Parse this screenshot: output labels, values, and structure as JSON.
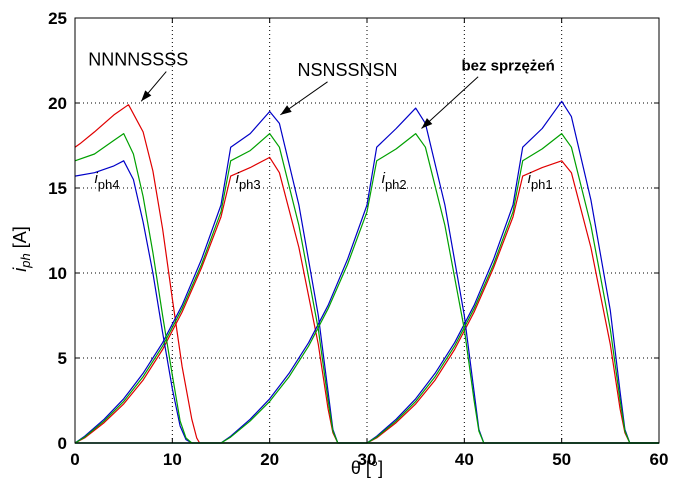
{
  "chart_data": {
    "type": "line",
    "title": "",
    "xlabel": "θ [°]",
    "ylabel": "i_ph [A]",
    "xlim": [
      0,
      60
    ],
    "ylim": [
      0,
      25
    ],
    "xticks": [
      0,
      10,
      20,
      30,
      40,
      50,
      60
    ],
    "yticks": [
      0,
      5,
      10,
      15,
      20,
      25
    ],
    "grid": true,
    "series": [
      {
        "name": "NNNNSSSS",
        "color": "#e00000",
        "phases": [
          {
            "x": [
              0,
              0.5,
              2,
              4,
              5.5,
              7,
              8,
              9,
              10,
              11,
              12,
              12.5,
              12.8,
              15,
              20,
              25,
              26.2,
              26.8,
              30,
              35,
              40,
              41.2,
              41.8,
              45,
              50,
              55,
              56.2,
              56.8,
              60
            ],
            "y": [
              17.4,
              17.6,
              18.3,
              19.3,
              19.9,
              18.3,
              16,
              12.6,
              8.5,
              4.5,
              1.4,
              0.3,
              0,
              0,
              0,
              0,
              0,
              0,
              0,
              0,
              0,
              0,
              0,
              0,
              0,
              0,
              0,
              0,
              0
            ]
          },
          {
            "x": [
              0,
              1,
              3,
              5,
              7,
              9,
              11,
              13,
              15,
              16,
              18,
              20,
              21,
              23,
              25,
              26,
              26.5,
              27,
              60
            ],
            "y": [
              0,
              0.3,
              1.2,
              2.3,
              3.7,
              5.5,
              7.7,
              10.3,
              13.3,
              15.7,
              16.2,
              16.8,
              15.9,
              11.5,
              5.8,
              2,
              0.6,
              0,
              0
            ]
          },
          {
            "x": [
              0,
              30,
              31,
              33,
              35,
              37,
              39,
              41,
              43,
              45,
              46,
              48,
              50,
              51,
              53,
              55,
              56,
              56.5,
              57,
              60
            ],
            "y": [
              0,
              0,
              0.3,
              1.2,
              2.3,
              3.7,
              5.5,
              7.7,
              10.3,
              13.3,
              15.7,
              16.2,
              16.6,
              15.9,
              11.5,
              5.8,
              2,
              0.6,
              0,
              0
            ]
          }
        ]
      },
      {
        "name": "NSNSSNSN",
        "color": "#0000c8",
        "phases": [
          {
            "x": [
              0,
              2,
              4,
              5,
              6,
              7,
              8,
              9,
              10,
              10.8,
              11.4,
              12,
              60
            ],
            "y": [
              15.7,
              15.9,
              16.3,
              16.6,
              15.5,
              13,
              10,
              6.5,
              3.2,
              1,
              0.2,
              0,
              0
            ]
          },
          {
            "x": [
              0,
              1,
              3,
              5,
              7,
              9,
              11,
              13,
              15,
              16,
              18,
              20,
              21,
              23,
              25,
              26,
              26.5,
              27,
              60
            ],
            "y": [
              0,
              0.4,
              1.4,
              2.6,
              4.1,
              5.9,
              8.1,
              10.8,
              14,
              17.4,
              18.2,
              19.5,
              18.8,
              14,
              7.5,
              3,
              0.8,
              0,
              0
            ]
          },
          {
            "x": [
              0,
              15,
              16,
              18,
              20,
              22,
              24,
              26,
              28,
              30,
              31,
              33,
              35,
              36,
              38,
              40,
              41,
              41.5,
              42,
              60
            ],
            "y": [
              0,
              0,
              0.4,
              1.4,
              2.6,
              4.1,
              5.9,
              8.1,
              10.8,
              14,
              17.4,
              18.5,
              19.7,
              18.8,
              14,
              7.5,
              3,
              0.8,
              0,
              0
            ]
          },
          {
            "x": [
              0,
              30,
              31,
              33,
              35,
              37,
              39,
              41,
              43,
              45,
              46,
              48,
              50,
              51,
              53,
              55,
              56,
              56.5,
              57,
              60
            ],
            "y": [
              0,
              0,
              0.4,
              1.4,
              2.6,
              4.1,
              5.9,
              8.1,
              10.8,
              14,
              17.4,
              18.5,
              20.1,
              19.2,
              14.3,
              7.8,
              3,
              0.8,
              0,
              0
            ]
          }
        ]
      },
      {
        "name": "bez sprzężeń",
        "color": "#00a000",
        "phases": [
          {
            "x": [
              0,
              2,
              4,
              5,
              6,
              7,
              8,
              9,
              10,
              10.8,
              11.4,
              12,
              60
            ],
            "y": [
              16.6,
              17,
              17.8,
              18.2,
              17,
              14.5,
              11.2,
              7.5,
              4,
              1.3,
              0.3,
              0,
              0
            ]
          },
          {
            "x": [
              0,
              1,
              3,
              5,
              7,
              9,
              11,
              13,
              15,
              16,
              18,
              20,
              21,
              23,
              25,
              26,
              26.5,
              27,
              60
            ],
            "y": [
              0,
              0.35,
              1.3,
              2.45,
              3.9,
              5.7,
              7.9,
              10.5,
              13.6,
              16.6,
              17.2,
              18.2,
              17.4,
              12.8,
              6.7,
              2.5,
              0.7,
              0,
              0
            ]
          },
          {
            "x": [
              0,
              15,
              16,
              18,
              20,
              22,
              24,
              26,
              28,
              30,
              31,
              33,
              35,
              36,
              38,
              40,
              41,
              41.5,
              42,
              60
            ],
            "y": [
              0,
              0,
              0.35,
              1.3,
              2.45,
              3.9,
              5.7,
              7.9,
              10.5,
              13.6,
              16.6,
              17.3,
              18.2,
              17.4,
              12.8,
              6.7,
              2.5,
              0.7,
              0,
              0
            ]
          },
          {
            "x": [
              0,
              30,
              31,
              33,
              35,
              37,
              39,
              41,
              43,
              45,
              46,
              48,
              50,
              51,
              53,
              55,
              56,
              56.5,
              57,
              60
            ],
            "y": [
              0,
              0,
              0.35,
              1.3,
              2.45,
              3.9,
              5.7,
              7.9,
              10.5,
              13.6,
              16.6,
              17.3,
              18.2,
              17.4,
              12.8,
              6.7,
              2.5,
              0.7,
              0,
              0
            ]
          }
        ]
      }
    ],
    "annotations": [
      {
        "text": "NNNNSSSS",
        "x": 6.5,
        "y": 22.2,
        "arrow_to": [
          6.8,
          20.1
        ]
      },
      {
        "text": "NSNSSNSN",
        "x": 28,
        "y": 21.6,
        "arrow_to": [
          21.1,
          19.3
        ]
      },
      {
        "text": "bez sprzężeń",
        "x": 44.5,
        "y": 21.9,
        "arrow_to": [
          35.6,
          18.5
        ]
      }
    ],
    "phase_labels": [
      {
        "base": "i",
        "sub": "ph4",
        "x": 2,
        "y": 15.3
      },
      {
        "base": "i",
        "sub": "ph3",
        "x": 16.5,
        "y": 15.3
      },
      {
        "base": "i",
        "sub": "ph2",
        "x": 31.5,
        "y": 15.3
      },
      {
        "base": "i",
        "sub": "ph1",
        "x": 46.5,
        "y": 15.3
      }
    ]
  }
}
